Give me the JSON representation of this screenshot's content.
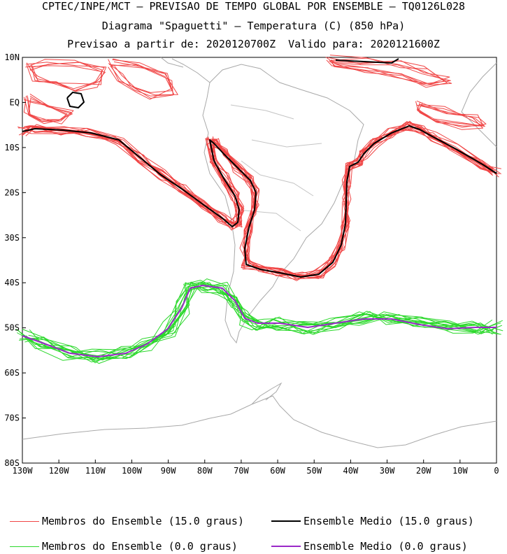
{
  "title": {
    "line1": "CPTEC/INPE/MCT – PREVISAO DE TEMPO GLOBAL POR ENSEMBLE – TQ0126L028",
    "line2": "Diagrama \"Spaguetti\" – Temperatura (C) (850 hPa)",
    "line3": "Previsao a partir de: 2020120700Z  Valido para: 2020121600Z"
  },
  "map": {
    "lat_labels": [
      "10N",
      "EQ",
      "10S",
      "20S",
      "30S",
      "40S",
      "50S",
      "60S",
      "70S",
      "80S"
    ],
    "lon_labels": [
      "130W",
      "120W",
      "110W",
      "100W",
      "90W",
      "80W",
      "70W",
      "60W",
      "50W",
      "40W",
      "30W",
      "20W",
      "10W",
      "0"
    ],
    "lon_range": [
      -130,
      0
    ],
    "lat_range": [
      -80,
      10
    ],
    "coastline_color": "#a9a9a9",
    "colors": {
      "member_15": "#f04545",
      "mean_15": "#000000",
      "member_0": "#2bd82b",
      "mean_0": "#9a28c8"
    }
  },
  "legend": {
    "member_15_label": "Membros do Ensemble (15.0 graus)",
    "mean_15_label": "Ensemble Medio (15.0 graus)",
    "member_0_label": "Membros do Ensemble (0.0 graus)",
    "mean_0_label": "Ensemble Medio (0.0 graus)"
  }
}
